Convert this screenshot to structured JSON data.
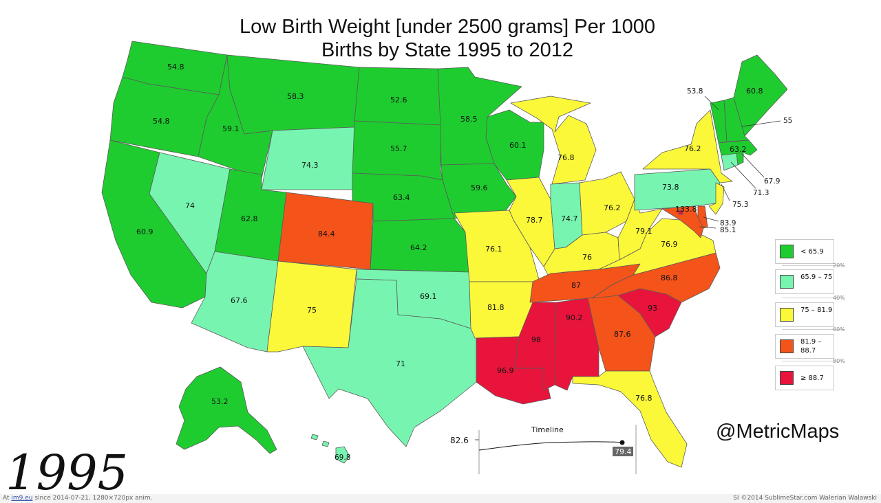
{
  "title_line1": "Low Birth Weight [under 2500 grams] Per 1000",
  "title_line2": "Births by State 1995 to 2012",
  "year": "1995",
  "handle": "@MetricMaps",
  "colors": {
    "green": "#1fcc2f",
    "mint": "#77f5b0",
    "yellow": "#fbf83a",
    "orange": "#f4531a",
    "red": "#e8143c",
    "border": "#5a5a5a"
  },
  "legend": {
    "items": [
      {
        "label": "< 65.9",
        "color": "#1fcc2f"
      },
      {
        "label": "65.9 – 75",
        "color": "#77f5b0"
      },
      {
        "label": "75 – 81.9",
        "color": "#fbf83a"
      },
      {
        "label": "81.9 – 88.7",
        "color": "#f4531a"
      },
      {
        "label": "≥ 88.7",
        "color": "#e8143c"
      }
    ],
    "percents": [
      "20%",
      "40%",
      "60%",
      "80%"
    ]
  },
  "timeline": {
    "title": "Timeline",
    "start_value": "82.6",
    "current_value": "79.4"
  },
  "states": {
    "WA": "54.8",
    "OR": "54.8",
    "CA": "60.9",
    "NV": "74",
    "ID": "59.1",
    "MT": "58.3",
    "WY": "74.3",
    "UT": "62.8",
    "AZ": "67.6",
    "CO": "84.4",
    "NM": "75",
    "ND": "52.6",
    "SD": "55.7",
    "NE": "63.4",
    "KS": "64.2",
    "OK": "69.1",
    "TX": "71",
    "MN": "58.5",
    "IA": "59.6",
    "MO": "76.1",
    "AR": "81.8",
    "LA": "96.9",
    "WI": "60.1",
    "IL": "78.7",
    "MI": "76.8",
    "IN": "74.7",
    "OH": "76.2",
    "KY": "76",
    "TN": "87",
    "MS": "98",
    "AL": "90.2",
    "GA": "87.6",
    "FL": "76.8",
    "SC": "93",
    "NC": "86.8",
    "VA": "76.9",
    "WV": "79.1",
    "PA": "73.8",
    "NY": "76.2",
    "VT": "53.8",
    "NH": "55",
    "ME": "60.8",
    "MA": "63.2",
    "CT": "71.3",
    "RI": "67.9",
    "NJ": "75.3",
    "DE": "83.9",
    "MD": "85.1",
    "DC": "133.8",
    "AK": "53.2",
    "HI": "69.8"
  },
  "chart_data": {
    "type": "choropleth",
    "title": "Low Birth Weight [under 2500 grams] Per 1000 Births by State 1995 to 2012",
    "year": "1995",
    "unit": "per 1000 births",
    "bins": [
      "< 65.9",
      "65.9 – 75",
      "75 – 81.9",
      "81.9 – 88.7",
      "≥ 88.7"
    ],
    "national_value": 79.4
  },
  "footer": {
    "left_prefix": "At ",
    "left_link": "im9.eu",
    "left_rest": " since 2014-07-21, 1280×720px anim.",
    "right": "SI ©2014 SublimeStar.com Walerian Walawski"
  }
}
